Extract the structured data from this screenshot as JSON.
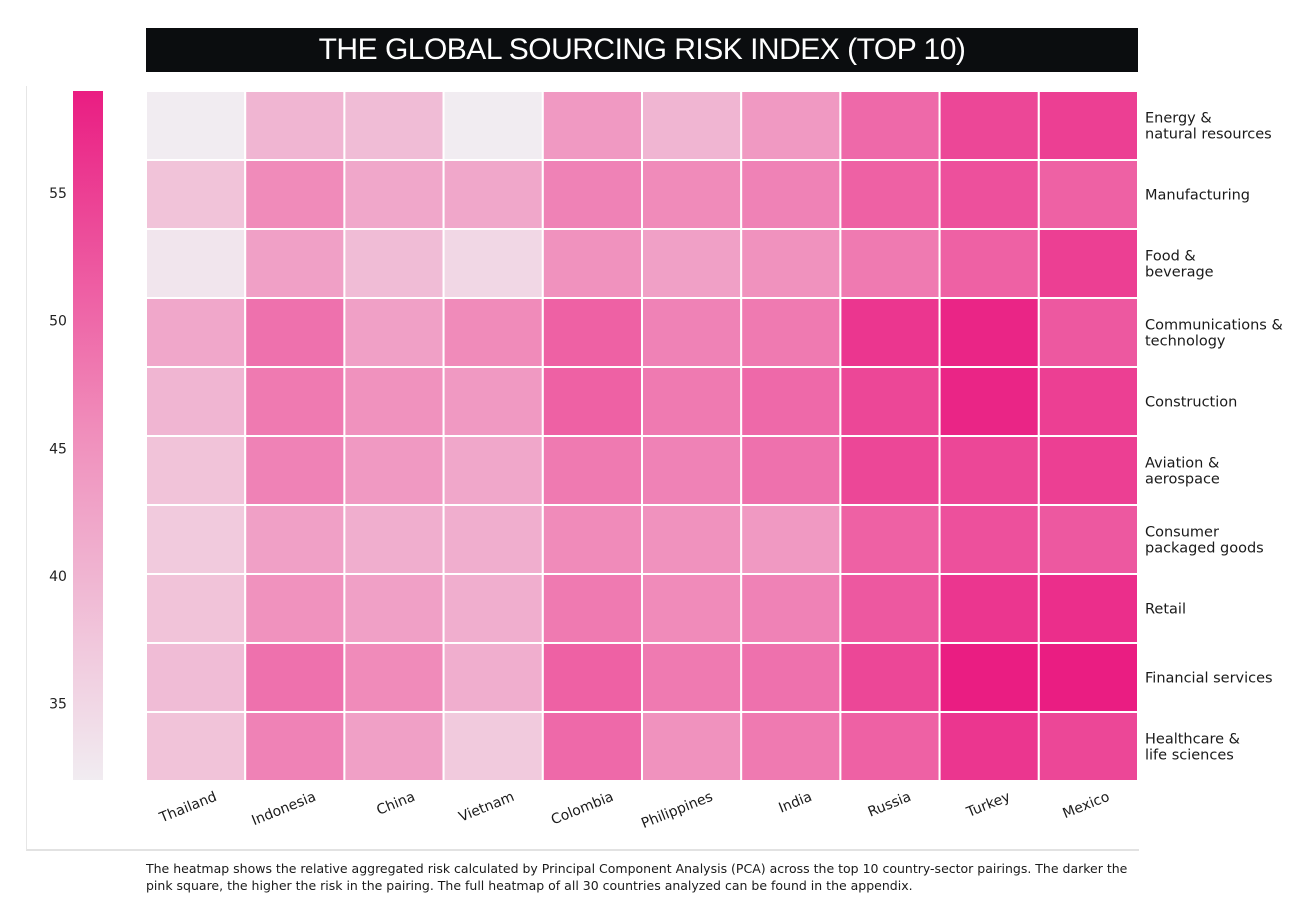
{
  "chart_data": {
    "type": "heatmap",
    "title": "THE GLOBAL SOURCING RISK INDEX (TOP 10)",
    "countries": [
      "Thailand",
      "Indonesia",
      "China",
      "Vietnam",
      "Colombia",
      "Philippines",
      "India",
      "Russia",
      "Turkey",
      "Mexico"
    ],
    "sectors": [
      "Energy & natural resources",
      "Manufacturing",
      "Food & beverage",
      "Communications & technology",
      "Construction",
      "Aviation & aerospace",
      "Consumer packaged goods",
      "Retail",
      "Financial services",
      "Healthcare & life sciences"
    ],
    "sector_label_lines": [
      [
        "Energy &",
        "natural resources"
      ],
      [
        "Manufacturing"
      ],
      [
        "Food &",
        "beverage"
      ],
      [
        "Communications &",
        "technology"
      ],
      [
        "Construction"
      ],
      [
        "Aviation &",
        "aerospace"
      ],
      [
        "Consumer",
        "packaged goods"
      ],
      [
        "Retail"
      ],
      [
        "Financial services"
      ],
      [
        "Healthcare &",
        "life sciences"
      ]
    ],
    "values": [
      [
        32,
        40,
        39,
        32,
        44,
        40,
        44,
        50,
        54,
        55
      ],
      [
        38,
        46,
        42,
        42,
        47,
        46,
        47,
        51,
        53,
        51
      ],
      [
        33,
        43,
        39,
        35,
        45,
        43,
        45,
        48,
        51,
        55
      ],
      [
        42,
        49,
        43,
        46,
        51,
        47,
        48,
        56,
        58,
        52
      ],
      [
        40,
        48,
        45,
        44,
        51,
        48,
        50,
        54,
        58,
        55
      ],
      [
        38,
        47,
        44,
        42,
        48,
        47,
        49,
        54,
        54,
        55
      ],
      [
        37,
        43,
        41,
        41,
        46,
        45,
        44,
        51,
        53,
        52
      ],
      [
        38,
        45,
        43,
        41,
        48,
        46,
        47,
        52,
        56,
        57
      ],
      [
        39,
        49,
        46,
        41,
        51,
        48,
        49,
        54,
        59,
        59
      ],
      [
        38,
        47,
        43,
        37,
        50,
        45,
        48,
        51,
        56,
        54
      ]
    ],
    "colorbar": {
      "min": 32,
      "max": 59,
      "ticks": [
        35,
        40,
        45,
        50,
        55
      ]
    },
    "color_low": "#f1ecf1",
    "color_mid": "#f08fbc",
    "color_high": "#ea1d82",
    "caption": "The heatmap shows the relative aggregated risk calculated by Principal Component Analysis (PCA) across the top 10 country-sector pairings. The darker the pink square, the higher the risk in the pairing. The full heatmap of all 30 countries analyzed can be found in the appendix."
  }
}
